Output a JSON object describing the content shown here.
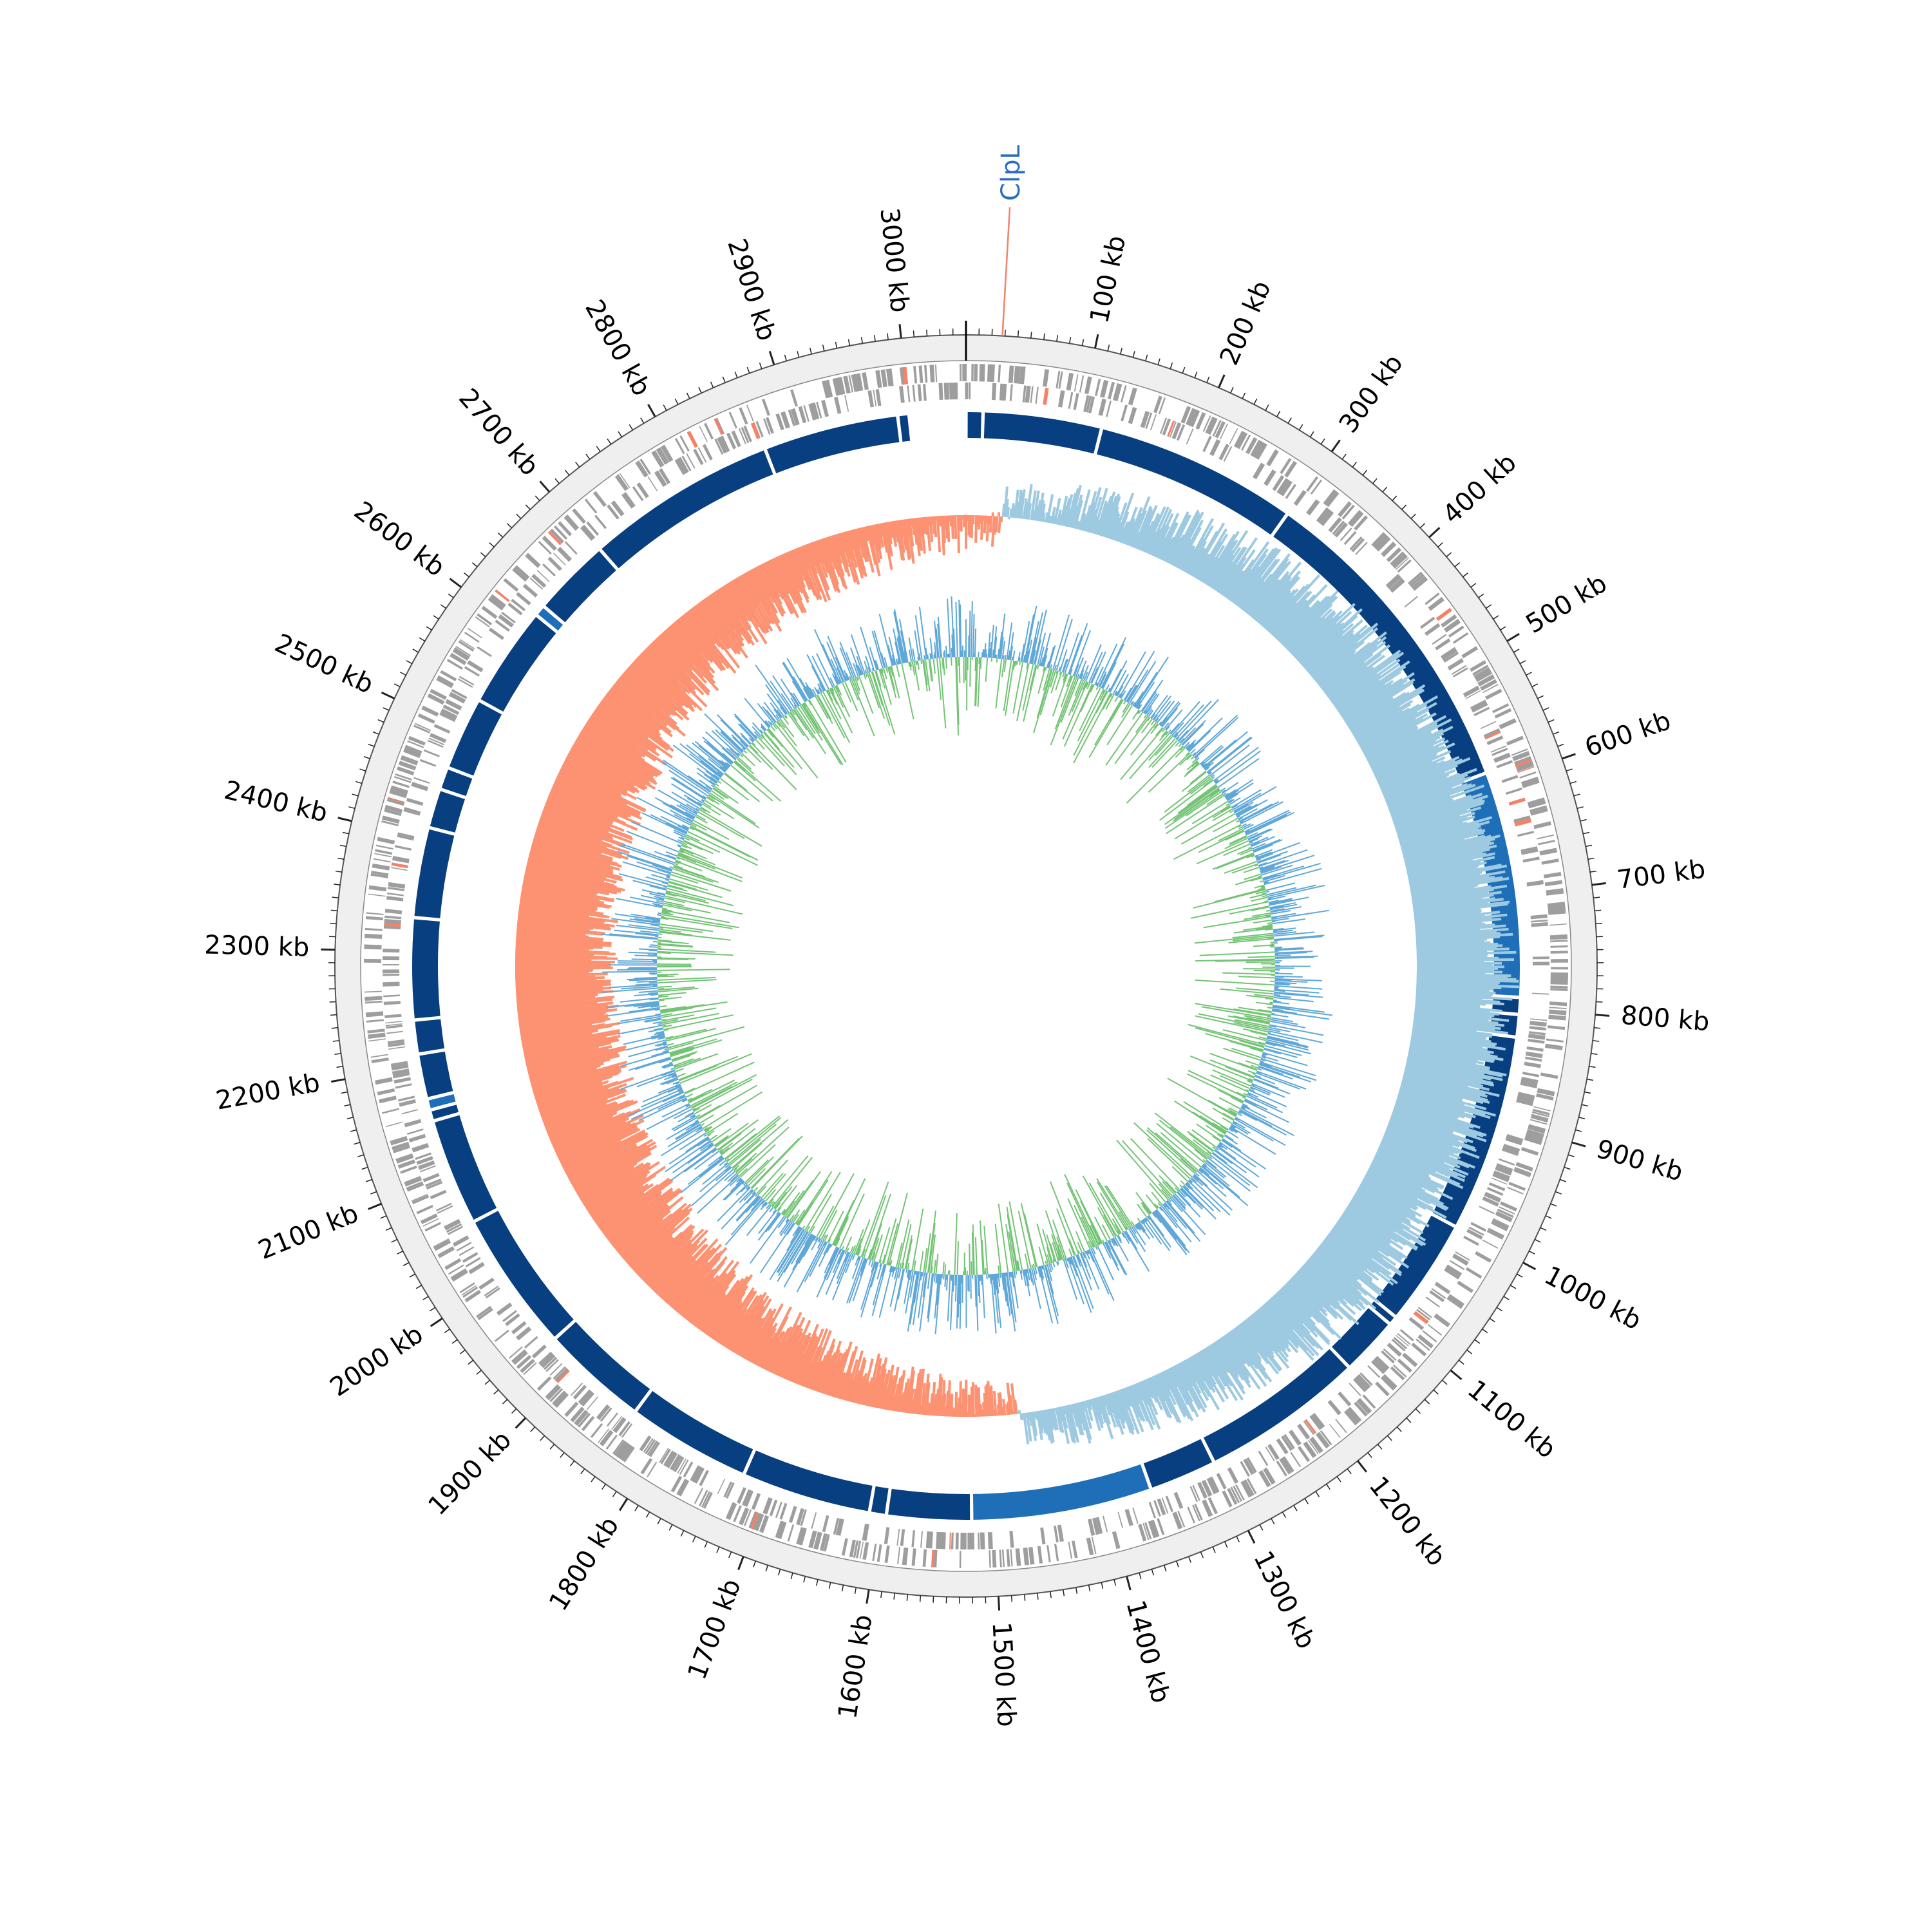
{
  "chart_data": {
    "type": "circular-genome-map",
    "genome_length_kb": 3050,
    "origin_position_kb": 0,
    "direction": "clockwise",
    "tick_labels": [
      "100 kb",
      "200 kb",
      "300 kb",
      "400 kb",
      "500 kb",
      "600 kb",
      "700 kb",
      "800 kb",
      "900 kb",
      "1000 kb",
      "1100 kb",
      "1200 kb",
      "1300 kb",
      "1400 kb",
      "1500 kb",
      "1600 kb",
      "1700 kb",
      "1800 kb",
      "1900 kb",
      "2000 kb",
      "2100 kb",
      "2200 kb",
      "2300 kb",
      "2400 kb",
      "2500 kb",
      "2600 kb",
      "2700 kb",
      "2800 kb",
      "2900 kb",
      "3000 kb"
    ],
    "tick_values_kb": [
      100,
      200,
      300,
      400,
      500,
      600,
      700,
      800,
      900,
      1000,
      1100,
      1200,
      1300,
      1400,
      1500,
      1600,
      1700,
      1800,
      1900,
      2000,
      2100,
      2200,
      2300,
      2400,
      2500,
      2600,
      2700,
      2800,
      2900,
      3000
    ],
    "annotations": [
      {
        "label": "ClpL",
        "position_kb": 28,
        "color": "#2a6ebb"
      }
    ],
    "tracks": [
      {
        "name": "backbone",
        "color": "#efefef"
      },
      {
        "name": "features",
        "color": "#9e9e9e",
        "highlight_color": "#f4826a"
      },
      {
        "name": "contigs",
        "color": "#083f80",
        "alt_color": "#1f6fb8",
        "breaks_kb": [
          15,
          120,
          300,
          590,
          790,
          805,
          825,
          1000,
          1095,
          1103,
          1155,
          1300,
          1360,
          1520,
          1595,
          1610,
          1725,
          1835,
          1930,
          2055,
          2150,
          2160,
          2170,
          2210,
          2240,
          2330,
          2410,
          2445,
          2465,
          2530,
          2620,
          2630,
          2700,
          2870,
          2990,
          3000
        ]
      },
      {
        "name": "gc-skew",
        "positive_color": "#9ecae1",
        "negative_color": "#fc9272",
        "switch_kb": [
          40,
          1470
        ]
      },
      {
        "name": "gc-content",
        "above_color": "#5fa8d8",
        "below_color": "#74c476"
      }
    ]
  }
}
